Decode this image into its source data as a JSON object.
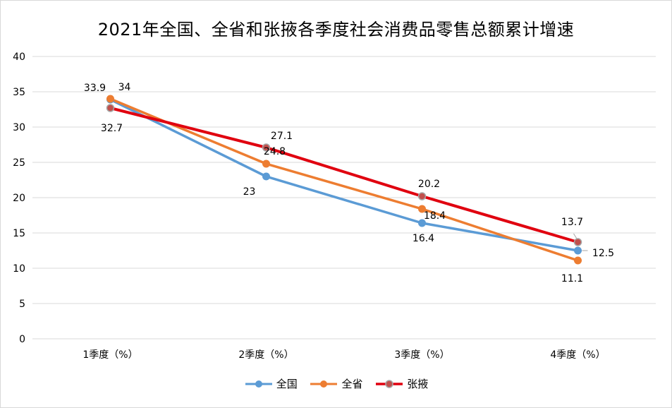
{
  "chart_data": {
    "type": "line",
    "title": "2021年全国、全省和张掖各季度社会消费品零售总额累计增速",
    "categories": [
      "1季度（%）",
      "2季度（%）",
      "3季度（%）",
      "4季度（%）"
    ],
    "yticks": [
      "0",
      "5",
      "10",
      "15",
      "20",
      "25",
      "30",
      "35",
      "40"
    ],
    "ylim": [
      0,
      40
    ],
    "grid": true,
    "legend": "bottom",
    "series": [
      {
        "name": "全国",
        "color": "#5b9bd5",
        "values": [
          33.9,
          23,
          16.4,
          12.5
        ],
        "labels": [
          "33.9",
          "23",
          "16.4",
          "12.5"
        ]
      },
      {
        "name": "全省",
        "color": "#ed7d31",
        "values": [
          34,
          24.8,
          18.4,
          11.1
        ],
        "labels": [
          "34",
          "24.8",
          "18.4",
          "11.1"
        ]
      },
      {
        "name": "张掖",
        "color": "#e0000f",
        "values": [
          32.7,
          27.1,
          20.2,
          13.7
        ],
        "labels": [
          "32.7",
          "27.1",
          "20.2",
          "13.7"
        ]
      }
    ]
  }
}
